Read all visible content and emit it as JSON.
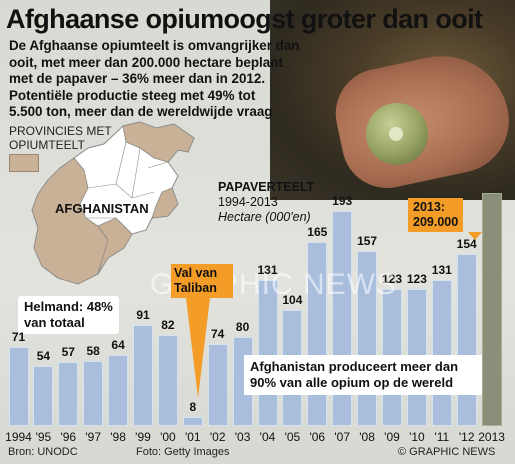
{
  "title": "Afghaanse opiumoogst groter dan ooit",
  "intro": [
    "De Afghaanse opiumteelt is omvangrijker dan",
    "ooit, met meer dan 200.000 hectare beplant",
    "met de papaver – 36% meer dan in 2012.",
    "Potentiële productie steeg met 49% tot",
    "5.500 ton, meer dan de wereldwijde vraag"
  ],
  "map": {
    "legend_line1": "PROVINCIES MET",
    "legend_line2": "OPIUMTEELT",
    "label": "AFGHANISTAN",
    "helmand_line1": "Helmand: 48%",
    "helmand_line2": "van totaal",
    "fill_color": "#c9b197"
  },
  "chart_legend": {
    "line1": "PAPAVERTEELT",
    "line2": "1994-2013",
    "line3": "Hectare (000'en)"
  },
  "annotations": {
    "a2013_line1": "2013:",
    "a2013_line2": "209.000",
    "taliban_line1": "Val van",
    "taliban_line2": "Taliban",
    "production_line1": "Afghanistan produceert meer dan",
    "production_line2": "90% van alle opium op de wereld"
  },
  "watermark": "GRAPHIC NEWS",
  "footer": {
    "source": "Bron: UNODC",
    "photo": "Foto: Getty Images",
    "copyright": "© GRAPHIC NEWS"
  },
  "colors": {
    "bar": "#a9bedd",
    "bar_2013": "#8a8f7a",
    "callout": "#f39c27"
  },
  "chart_data": {
    "type": "bar",
    "categories": [
      "1994",
      "'95",
      "'96",
      "'97",
      "'98",
      "'99",
      "'00",
      "'01",
      "'02",
      "'03",
      "'04",
      "'05",
      "'06",
      "'07",
      "'08",
      "'09",
      "'10",
      "'11",
      "'12",
      "2013"
    ],
    "values": [
      71,
      54,
      57,
      58,
      64,
      91,
      82,
      8,
      74,
      80,
      131,
      104,
      165,
      193,
      157,
      123,
      123,
      131,
      154,
      209
    ],
    "value_labels": [
      "71",
      "54",
      "57",
      "58",
      "64",
      "91",
      "82",
      "8",
      "74",
      "80",
      "131",
      "104",
      "165",
      "193",
      "157",
      "123",
      "123",
      "131",
      "154",
      ""
    ],
    "ylim": [
      0,
      210
    ],
    "grid": false
  }
}
